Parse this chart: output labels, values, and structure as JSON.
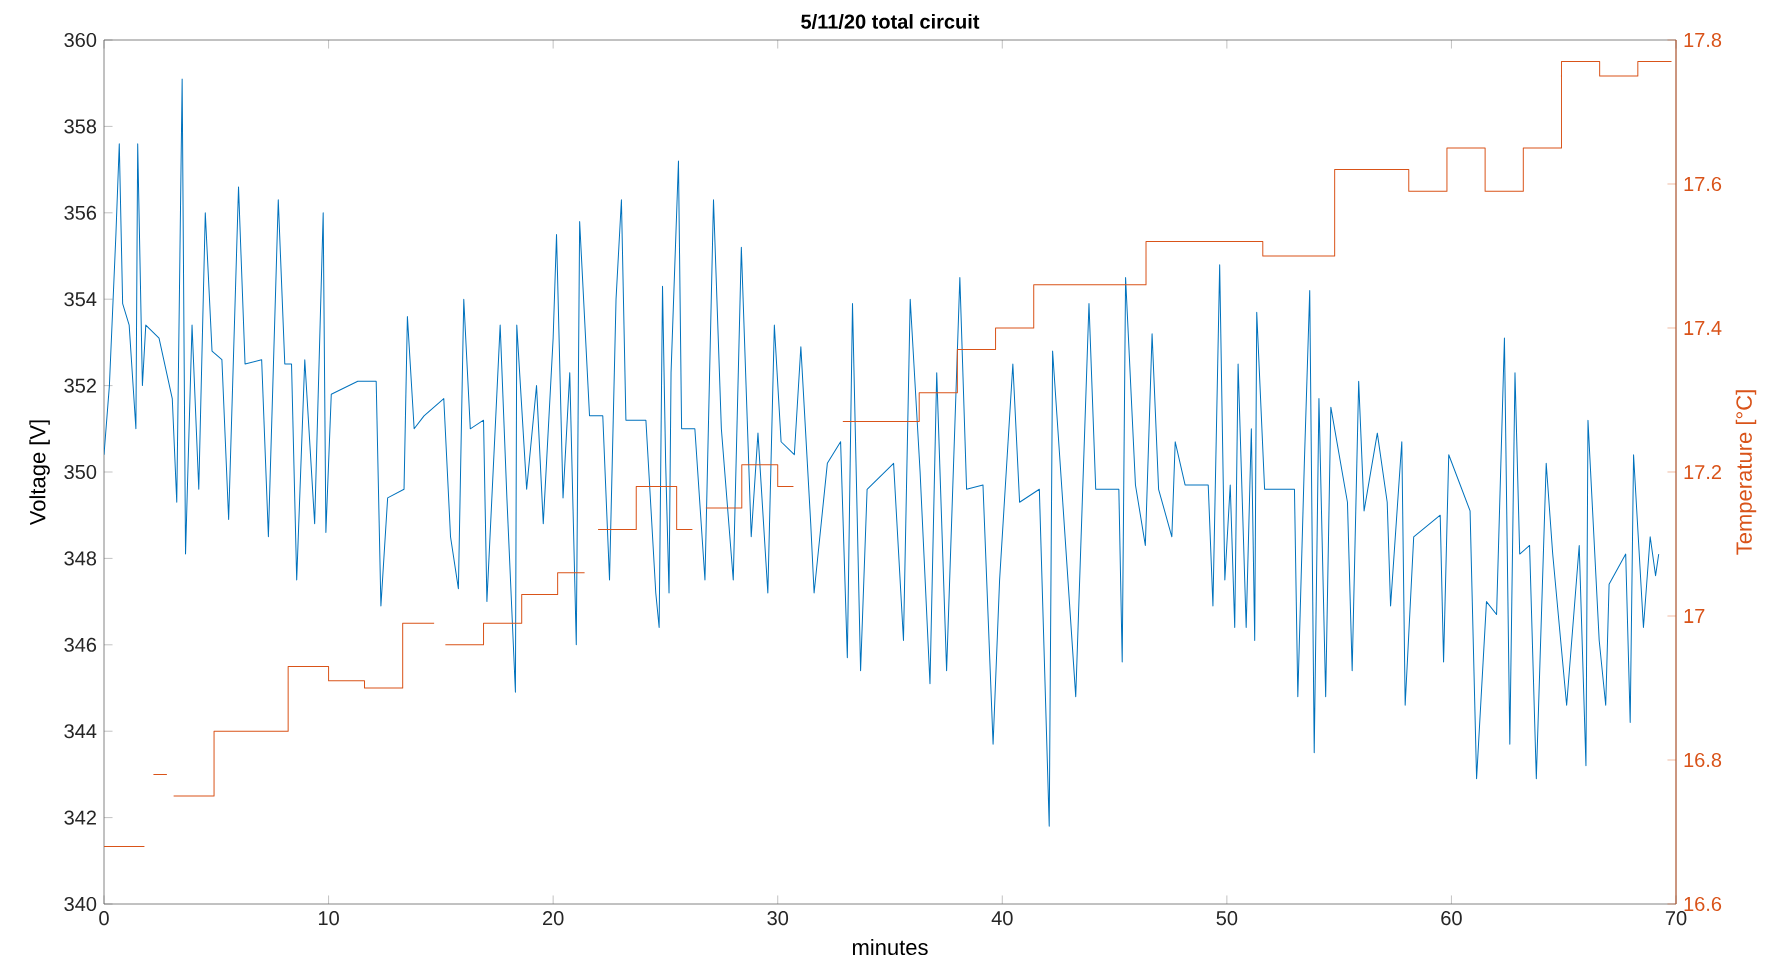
{
  "chart_data": {
    "type": "line",
    "title": "5/11/20 total circuit",
    "xlabel": "minutes",
    "ylabel": "Voltage [V]",
    "y2label": "Temperature [°C]",
    "xlim": [
      0,
      70
    ],
    "xticks": [
      0,
      10,
      20,
      30,
      40,
      50,
      60,
      70
    ],
    "ylim": [
      340,
      360
    ],
    "yticks": [
      340,
      342,
      344,
      346,
      348,
      350,
      352,
      354,
      356,
      358,
      360
    ],
    "y2lim": [
      16.6,
      17.8
    ],
    "y2ticks": [
      16.6,
      16.8,
      17,
      17.2,
      17.4,
      17.6,
      17.8
    ],
    "series": [
      {
        "color": "#0072bd",
        "x": [
          0,
          0.24,
          0.53,
          0.68,
          0.83,
          1.12,
          1.42,
          1.5,
          1.71,
          1.86,
          2.45,
          3.04,
          3.24,
          3.48,
          3.63,
          3.92,
          4.22,
          4.51,
          4.81,
          5.25,
          5.55,
          5.99,
          6.28,
          7.02,
          7.32,
          7.76,
          8.05,
          8.35,
          8.58,
          8.94,
          9.38,
          9.76,
          9.88,
          10.12,
          11.3,
          12.12,
          12.33,
          12.63,
          13.36,
          13.51,
          13.81,
          14.25,
          15.13,
          15.43,
          15.78,
          16.02,
          16.31,
          16.9,
          17.05,
          17.64,
          17.94,
          18.32,
          18.38,
          18.82,
          19.26,
          19.56,
          20.0,
          20.15,
          20.44,
          20.74,
          21.03,
          21.18,
          21.62,
          22.21,
          22.51,
          22.8,
          23.04,
          23.24,
          24.13,
          24.57,
          24.72,
          24.87,
          25.01,
          25.16,
          25.25,
          25.58,
          25.72,
          26.31,
          26.76,
          27.14,
          27.49,
          28.02,
          28.38,
          28.82,
          29.12,
          29.56,
          29.85,
          30.15,
          30.74,
          31.03,
          31.47,
          31.62,
          32.21,
          32.8,
          33.1,
          33.33,
          33.69,
          33.98,
          35.16,
          35.6,
          35.9,
          36.34,
          36.78,
          37.08,
          37.52,
          38.11,
          38.41,
          39.14,
          39.59,
          39.88,
          40.47,
          40.77,
          41.65,
          42.09,
          42.24,
          42.68,
          43.27,
          43.86,
          44.16,
          45.19,
          45.34,
          45.49,
          45.93,
          46.37,
          46.67,
          46.96,
          47.55,
          47.7,
          48.14,
          49.17,
          49.38,
          49.68,
          49.91,
          50.15,
          50.35,
          50.5,
          50.86,
          51.09,
          51.24,
          51.33,
          51.68,
          53.01,
          53.16,
          53.45,
          53.69,
          53.89,
          54.1,
          54.4,
          54.63,
          55.37,
          55.58,
          55.87,
          56.11,
          56.7,
          57.14,
          57.29,
          57.79,
          57.94,
          58.32,
          59.5,
          59.65,
          59.88,
          60.83,
          61.12,
          61.56,
          62.01,
          62.36,
          62.6,
          62.83,
          63.04,
          63.48,
          63.78,
          64.22,
          64.51,
          65.13,
          65.69,
          65.99,
          66.08,
          66.58,
          66.87,
          67.02,
          67.76,
          67.96,
          68.11,
          68.55,
          68.85,
          69.09,
          69.23
        ],
        "values": [
          350.4,
          352.0,
          355.5,
          357.6,
          353.9,
          353.4,
          351.0,
          357.6,
          352.0,
          353.4,
          353.1,
          351.7,
          349.3,
          359.1,
          348.1,
          353.4,
          349.6,
          356.0,
          352.8,
          352.6,
          348.9,
          356.6,
          352.5,
          352.6,
          348.5,
          356.3,
          352.5,
          352.5,
          347.5,
          352.6,
          348.8,
          356.0,
          348.6,
          351.8,
          352.1,
          352.1,
          346.9,
          349.4,
          349.6,
          353.6,
          351.0,
          351.3,
          351.7,
          348.5,
          347.3,
          354.0,
          351.0,
          351.2,
          347.0,
          353.4,
          349.4,
          344.9,
          353.4,
          349.6,
          352.0,
          348.8,
          353.1,
          355.5,
          349.4,
          352.3,
          346.0,
          355.8,
          351.3,
          351.3,
          347.5,
          354.0,
          356.3,
          351.2,
          351.2,
          347.2,
          346.4,
          354.3,
          350.2,
          347.2,
          352.3,
          357.2,
          351.0,
          351.0,
          347.5,
          356.3,
          351.0,
          347.5,
          355.2,
          348.5,
          350.9,
          347.2,
          353.4,
          350.7,
          350.4,
          352.9,
          348.8,
          347.2,
          350.2,
          350.7,
          345.7,
          353.9,
          345.4,
          349.6,
          350.2,
          346.1,
          354.0,
          350.0,
          345.1,
          352.3,
          345.4,
          354.5,
          349.6,
          349.7,
          343.7,
          347.5,
          352.5,
          349.3,
          349.6,
          341.8,
          352.8,
          349.4,
          344.8,
          353.9,
          349.6,
          349.6,
          345.6,
          354.5,
          349.7,
          348.3,
          353.2,
          349.6,
          348.5,
          350.7,
          349.7,
          349.7,
          346.9,
          354.8,
          347.5,
          349.7,
          346.4,
          352.5,
          346.4,
          351.0,
          346.1,
          353.7,
          349.6,
          349.6,
          344.8,
          350.2,
          354.2,
          343.5,
          351.7,
          344.8,
          351.5,
          349.3,
          345.4,
          352.1,
          349.1,
          350.9,
          349.3,
          346.9,
          350.7,
          344.6,
          348.5,
          349.0,
          345.6,
          350.4,
          349.1,
          342.9,
          347.0,
          346.7,
          353.1,
          343.7,
          352.3,
          348.1,
          348.3,
          342.9,
          350.2,
          348.1,
          344.6,
          348.3,
          343.2,
          351.2,
          346.1,
          344.6,
          347.4,
          348.1,
          344.2,
          350.4,
          346.4,
          348.5,
          347.6,
          348.1
        ]
      },
      {
        "type": "step",
        "axis": "y2",
        "color": "#d95319",
        "x": [
          0,
          1.8,
          2.2,
          2.8,
          3.1,
          4.9,
          8.2,
          10.0,
          11.6,
          13.3,
          14.7,
          15.2,
          16.9,
          18.6,
          20.2,
          21.4,
          22.0,
          23.7,
          25.5,
          26.2,
          26.8,
          28.4,
          30.0,
          30.7,
          32.9,
          36.3,
          38.0,
          39.7,
          41.4,
          46.4,
          51.6,
          54.8,
          58.1,
          59.8,
          61.5,
          63.2,
          64.9,
          66.6,
          68.3,
          69.8
        ],
        "values": [
          16.68,
          null,
          16.78,
          null,
          16.75,
          16.84,
          16.93,
          16.91,
          16.9,
          16.99,
          null,
          16.96,
          16.99,
          17.03,
          17.06,
          null,
          17.12,
          17.18,
          17.12,
          null,
          17.15,
          17.21,
          17.18,
          null,
          17.27,
          17.31,
          17.37,
          17.4,
          17.46,
          17.52,
          17.5,
          17.62,
          17.59,
          17.65,
          17.59,
          17.65,
          17.77,
          17.75,
          17.77,
          17.77
        ]
      }
    ]
  }
}
